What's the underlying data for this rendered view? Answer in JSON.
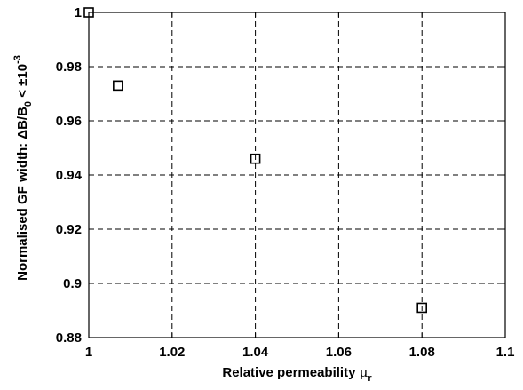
{
  "chart_data": {
    "type": "scatter",
    "xlabel": {
      "text": "Relative permeability ",
      "symbol": "μ",
      "subscript": "r"
    },
    "ylabel": {
      "text": "Normalised GF width:  ΔB/B",
      "subscript": "0",
      "suffix": " < ±10",
      "superscript": "-3"
    },
    "xlim": [
      1,
      1.1
    ],
    "ylim": [
      0.88,
      1.0
    ],
    "xticks": [
      1,
      1.02,
      1.04,
      1.06,
      1.08,
      1.1
    ],
    "xtick_labels": [
      "1",
      "1.02",
      "1.04",
      "1.06",
      "1.08",
      "1.1"
    ],
    "yticks": [
      0.88,
      0.9,
      0.92,
      0.94,
      0.96,
      0.98,
      1.0
    ],
    "ytick_labels": [
      "0.88",
      "0.9",
      "0.92",
      "0.94",
      "0.96",
      "0.98",
      "1"
    ],
    "grid": true,
    "marker": "square",
    "series": [
      {
        "points": [
          {
            "x": 1.0,
            "y": 1.0
          },
          {
            "x": 1.007,
            "y": 0.973
          },
          {
            "x": 1.04,
            "y": 0.946
          },
          {
            "x": 1.08,
            "y": 0.891
          }
        ]
      }
    ]
  }
}
